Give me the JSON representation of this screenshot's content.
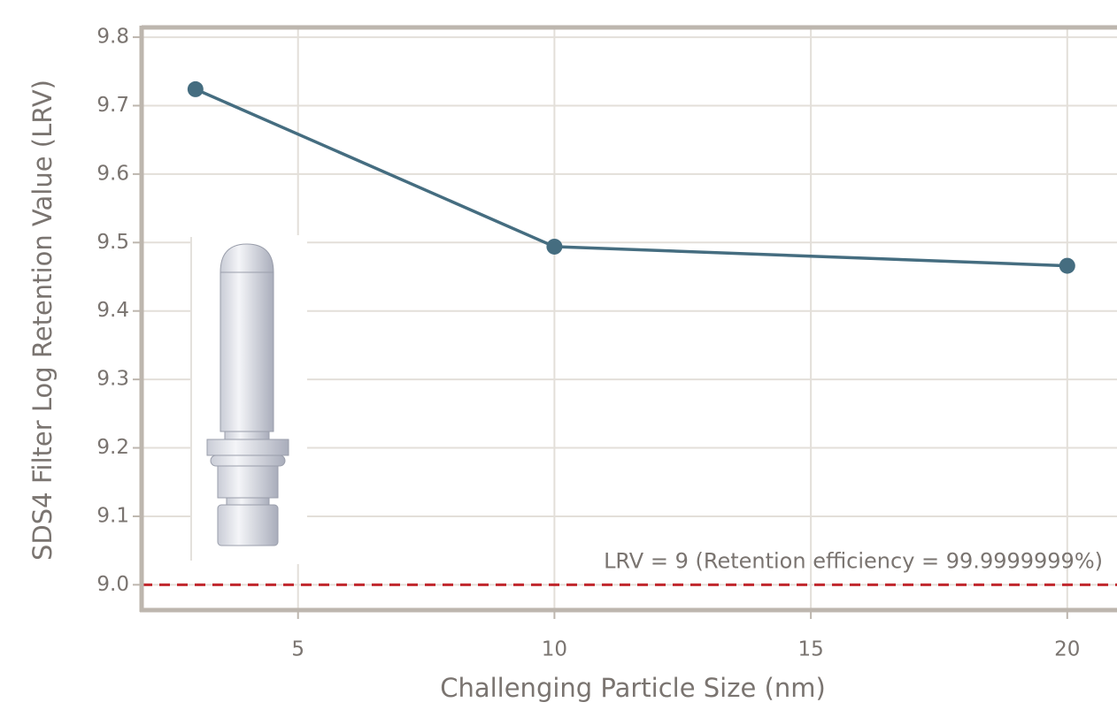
{
  "chart_data": {
    "type": "line",
    "x_label": "Challenging Particle Size (nm)",
    "y_label": "SDS4 Filter Log Retention Value (LRV)",
    "x": [
      3,
      10,
      20
    ],
    "series": [
      {
        "color": "#456d80",
        "values": [
          9.724,
          9.494,
          9.466
        ]
      }
    ],
    "xlim": [
      1.95,
      20.97
    ],
    "xticks": [
      5,
      10,
      15,
      20
    ],
    "ylim": [
      8.963,
      9.813
    ],
    "yticks": [
      {
        "value": 9,
        "label": "9.0"
      },
      9.1,
      9.2,
      9.3,
      9.4,
      9.5,
      9.6,
      9.7,
      9.8
    ],
    "grid": true,
    "reference_line": {
      "value": 9,
      "label": "LRV = 9 (Retention efficiency = 99.9999999%)",
      "color": "#c0272d"
    }
  }
}
